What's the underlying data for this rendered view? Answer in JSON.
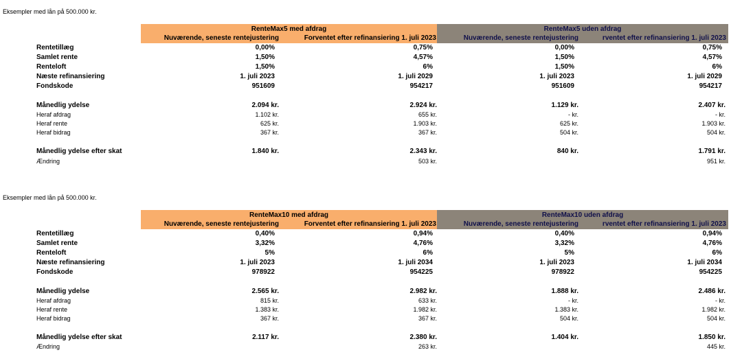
{
  "sections": [
    {
      "intro": "Eksempler med lån på 500.000 kr.",
      "header_left_title": "RenteMax5 med afdrag",
      "header_right_title": "RenteMax5 uden afdrag",
      "col_current": "Nuværende, seneste rentejustering",
      "col_future": "Forventet efter refinansiering 1. juli 2023",
      "col_future_clipped": "rventet efter refinansiering 1. juli 2023",
      "rows": {
        "rentetillaeg": {
          "label": "Rentetillæg",
          "v": [
            "0,00%",
            "0,75%",
            "0,00%",
            "0,75%"
          ]
        },
        "samlet_rente": {
          "label": "Samlet rente",
          "v": [
            "1,50%",
            "4,57%",
            "1,50%",
            "4,57%"
          ]
        },
        "renteloft": {
          "label": "Renteloft",
          "v": [
            "1,50%",
            "6%",
            "1,50%",
            "6%"
          ]
        },
        "naeste_refin": {
          "label": "Næste refinansiering",
          "v": [
            "1. juli 2023",
            "1. juli 2029",
            "1. juli 2023",
            "1. juli 2029"
          ]
        },
        "fondskode": {
          "label": "Fondskode",
          "v": [
            "951609",
            "954217",
            "951609",
            "954217"
          ]
        },
        "ydelse": {
          "label": "Månedlig ydelse",
          "v": [
            "2.094 kr.",
            "2.924 kr.",
            "1.129 kr.",
            "2.407 kr."
          ]
        },
        "afdrag": {
          "label": "Heraf afdrag",
          "v": [
            "1.102 kr.",
            "655 kr.",
            "-   kr.",
            "-   kr."
          ]
        },
        "rente": {
          "label": "Heraf rente",
          "v": [
            "625 kr.",
            "1.903 kr.",
            "625 kr.",
            "1.903 kr."
          ]
        },
        "bidrag": {
          "label": "Heraf bidrag",
          "v": [
            "367 kr.",
            "367 kr.",
            "504 kr.",
            "504 kr."
          ]
        },
        "efter_skat": {
          "label": "Månedlig ydelse efter skat",
          "v": [
            "1.840 kr.",
            "2.343 kr.",
            "840 kr.",
            "1.791 kr."
          ]
        },
        "aendring": {
          "label": "Ændring",
          "v": [
            "",
            "503 kr.",
            "",
            "951 kr."
          ]
        }
      }
    },
    {
      "intro": "Eksempler med lån på 500.000 kr.",
      "header_left_title": "RenteMax10 med afdrag",
      "header_right_title": "RenteMax10 uden afdrag",
      "col_current": "Nuværende, seneste rentejustering",
      "col_future": "Forventet efter refinansiering 1. juli 2023",
      "col_future_clipped": "rventet efter refinansiering 1. juli 2023",
      "rows": {
        "rentetillaeg": {
          "label": "Rentetillæg",
          "v": [
            "0,40%",
            "0,94%",
            "0,40%",
            "0,94%"
          ]
        },
        "samlet_rente": {
          "label": "Samlet rente",
          "v": [
            "3,32%",
            "4,76%",
            "3,32%",
            "4,76%"
          ]
        },
        "renteloft": {
          "label": "Renteloft",
          "v": [
            "5%",
            "6%",
            "5%",
            "6%"
          ]
        },
        "naeste_refin": {
          "label": "Næste refinansiering",
          "v": [
            "1. juli 2023",
            "1. juli 2034",
            "1. juli 2023",
            "1. juli 2034"
          ]
        },
        "fondskode": {
          "label": "Fondskode",
          "v": [
            "978922",
            "954225",
            "978922",
            "954225"
          ]
        },
        "ydelse": {
          "label": "Månedlig ydelse",
          "v": [
            "2.565 kr.",
            "2.982 kr.",
            "1.888 kr.",
            "2.486 kr."
          ]
        },
        "afdrag": {
          "label": "Heraf afdrag",
          "v": [
            "815 kr.",
            "633 kr.",
            "-   kr.",
            "-   kr."
          ]
        },
        "rente": {
          "label": "Heraf rente",
          "v": [
            "1.383 kr.",
            "1.982 kr.",
            "1.383 kr.",
            "1.982 kr."
          ]
        },
        "bidrag": {
          "label": "Heraf bidrag",
          "v": [
            "367 kr.",
            "367 kr.",
            "504 kr.",
            "504 kr."
          ]
        },
        "efter_skat": {
          "label": "Månedlig ydelse efter skat",
          "v": [
            "2.117 kr.",
            "2.380 kr.",
            "1.404 kr.",
            "1.850 kr."
          ]
        },
        "aendring": {
          "label": "Ændring",
          "v": [
            "",
            "263 kr.",
            "",
            "445 kr."
          ]
        }
      }
    }
  ]
}
